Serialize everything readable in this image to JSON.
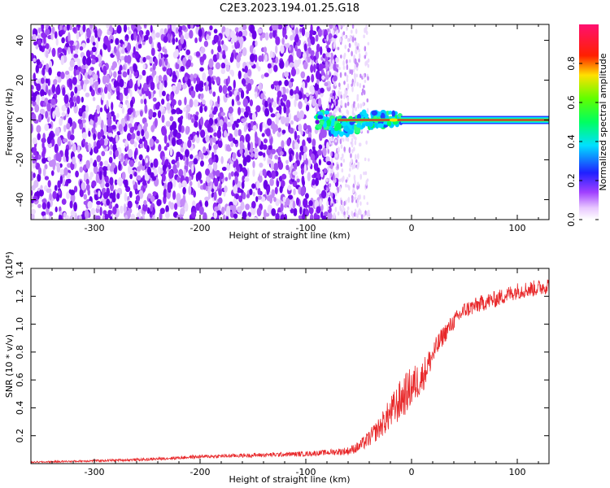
{
  "title": "C2E3.2023.194.01.25.G18",
  "colors": {
    "snr_line": "#e8282a",
    "scatter_noise": "#7a10ee",
    "plot_bg": "#ffffff"
  },
  "chart_data": [
    {
      "type": "heatmap",
      "xlabel": "Height of straight line (km)",
      "ylabel": "Frequency (Hz)",
      "xlim": [
        -360,
        130
      ],
      "ylim": [
        -50,
        48
      ],
      "x_ticks": [
        -300,
        -200,
        -100,
        0,
        100
      ],
      "x_tick_labels": [
        "-300",
        "-200",
        "-100",
        "0",
        "100"
      ],
      "y_ticks": [
        -40,
        -20,
        0,
        20,
        40
      ],
      "y_tick_labels": [
        "-40",
        "-20",
        "0",
        "20",
        "40"
      ],
      "colorbar": {
        "label": "Normalized spectral amplitude",
        "range": [
          0.0,
          1.0
        ],
        "ticks": [
          0.0,
          0.2,
          0.4,
          0.6,
          0.8
        ],
        "tick_labels": [
          "0.0",
          "0.2",
          "0.4",
          "0.6",
          "0.8"
        ],
        "colormap": "rainbow (white-violet-blue-cyan-green-yellow-red-pink)"
      },
      "description_of_content": {
        "noise_region_x_range": [
          -360,
          -75
        ],
        "noise_amplitude_range": [
          0.0,
          0.3
        ],
        "signal_line_frequency_hz": 0,
        "signal_x_range": [
          -90,
          130
        ],
        "signal_amplitude_peak": 0.95,
        "signal_dip_near_x": -70,
        "signal_dip_frequency_hz": -5
      },
      "grid": false
    },
    {
      "type": "line",
      "xlabel": "Height of straight line (km)",
      "ylabel": "SNR (10 * v/v)",
      "y_multiplier": "(x10⁴)",
      "xlim": [
        -360,
        130
      ],
      "ylim": [
        0,
        1.4
      ],
      "x_ticks": [
        -300,
        -200,
        -100,
        0,
        100
      ],
      "x_tick_labels": [
        "-300",
        "-200",
        "-100",
        "0",
        "100"
      ],
      "y_ticks": [
        0.2,
        0.4,
        0.6,
        0.8,
        1.0,
        1.2,
        1.4
      ],
      "y_tick_labels": [
        "0.2",
        "0.4",
        "0.6",
        "0.8",
        "1.0",
        "1.2",
        "1.4"
      ],
      "grid": false,
      "series": [
        {
          "x": [
            -360,
            -300,
            -250,
            -200,
            -150,
            -100,
            -80,
            -60,
            -50,
            -40,
            -30,
            -20,
            -10,
            0,
            10,
            20,
            30,
            40,
            50,
            60,
            70,
            80,
            90,
            100,
            110,
            120,
            130
          ],
          "y": [
            0.01,
            0.02,
            0.03,
            0.05,
            0.06,
            0.07,
            0.08,
            0.09,
            0.12,
            0.18,
            0.26,
            0.36,
            0.46,
            0.55,
            0.62,
            0.78,
            0.92,
            1.02,
            1.1,
            1.13,
            1.16,
            1.18,
            1.21,
            1.24,
            1.25,
            1.26,
            1.28
          ],
          "noise_amplitude": [
            0.005,
            0.008,
            0.01,
            0.012,
            0.015,
            0.018,
            0.02,
            0.03,
            0.04,
            0.06,
            0.08,
            0.12,
            0.15,
            0.15,
            0.12,
            0.09,
            0.07,
            0.06,
            0.06,
            0.06,
            0.06,
            0.06,
            0.06,
            0.06,
            0.06,
            0.06,
            0.06
          ]
        }
      ]
    }
  ]
}
